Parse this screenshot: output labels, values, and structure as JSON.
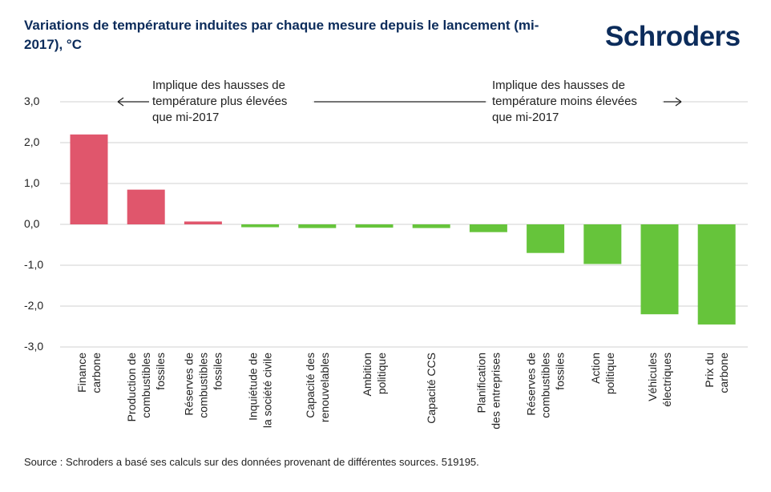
{
  "title": "Variations de température induites par chaque mesure depuis le lancement (mi-2017), °C",
  "logo_text": "Schroders",
  "source": "Source : Schroders a basé ses calculs sur des données provenant de différentes sources. 519195.",
  "colors": {
    "positive": "#e0566c",
    "negative": "#66c43b",
    "title": "#0c2c5b",
    "grid": "#d0d0d0"
  },
  "chart_data": {
    "type": "bar",
    "categories": [
      [
        "Finance",
        "carbone"
      ],
      [
        "Production de",
        "combustibles",
        "fossiles"
      ],
      [
        "Réserves de",
        "combustibles",
        "fossiles"
      ],
      [
        "Inquiétude de",
        "la société civile"
      ],
      [
        "Capacité des",
        "renouvelables"
      ],
      [
        "Ambition",
        "politique"
      ],
      [
        "Capacité CCS"
      ],
      [
        "Planification",
        "des entreprises"
      ],
      [
        "Réserves de",
        "combustibles",
        "fossiles"
      ],
      [
        "Action",
        "politique"
      ],
      [
        "Véhicules",
        "électriques"
      ],
      [
        "Prix du",
        "carbone"
      ]
    ],
    "values": [
      2.2,
      0.85,
      0.07,
      -0.07,
      -0.09,
      -0.08,
      -0.09,
      -0.19,
      -0.7,
      -0.97,
      -2.2,
      -2.45
    ],
    "ylim": [
      -3.0,
      3.0
    ],
    "yticks": [
      3.0,
      2.0,
      1.0,
      0.0,
      -1.0,
      -2.0,
      -3.0
    ],
    "ytick_labels": [
      "3,0",
      "2,0",
      "1,0",
      "0,0",
      "-1,0",
      "-2,0",
      "-3,0"
    ],
    "grid": true,
    "annotations": {
      "left": [
        "Implique des hausses de",
        "température plus élevées",
        "que mi-2017"
      ],
      "right": [
        "Implique des hausses de",
        "température moins élevées",
        "que mi-2017"
      ]
    }
  }
}
